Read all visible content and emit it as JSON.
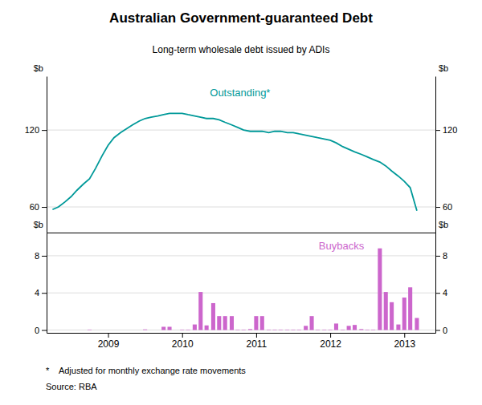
{
  "chart_data": [
    {
      "type": "line",
      "title": "Australian Government-guaranteed Debt",
      "subtitle": "Long-term wholesale debt issued by ADIs",
      "x": [
        2008.25,
        2008.33,
        2008.42,
        2008.5,
        2008.58,
        2008.67,
        2008.75,
        2008.83,
        2008.92,
        2009.0,
        2009.08,
        2009.17,
        2009.25,
        2009.33,
        2009.42,
        2009.5,
        2009.58,
        2009.67,
        2009.75,
        2009.83,
        2009.92,
        2010.0,
        2010.08,
        2010.17,
        2010.25,
        2010.33,
        2010.42,
        2010.5,
        2010.58,
        2010.67,
        2010.75,
        2010.83,
        2010.92,
        2011.0,
        2011.08,
        2011.17,
        2011.25,
        2011.33,
        2011.42,
        2011.5,
        2011.58,
        2011.67,
        2011.75,
        2011.83,
        2011.92,
        2012.0,
        2012.08,
        2012.17,
        2012.25,
        2012.33,
        2012.42,
        2012.5,
        2012.58,
        2012.67,
        2012.75,
        2012.83,
        2012.92,
        2013.0,
        2013.08,
        2013.17
      ],
      "series": [
        {
          "name": "Outstanding*",
          "color": "#009999",
          "values": [
            58,
            60,
            64,
            68,
            73,
            78,
            82,
            90,
            100,
            108,
            114,
            118,
            121,
            124,
            127,
            129,
            130,
            131,
            132,
            133,
            133,
            133,
            132,
            131,
            130,
            129,
            129,
            128,
            126,
            124,
            122,
            120,
            119,
            119,
            119,
            118,
            119,
            119,
            118,
            118,
            117,
            116,
            115,
            114,
            113,
            112,
            110,
            107,
            105,
            103,
            101,
            99,
            97,
            95,
            92,
            88,
            84,
            80,
            75,
            57
          ]
        }
      ],
      "xlim": [
        2008.17,
        2013.42
      ],
      "ylim": [
        40,
        162
      ],
      "yticks": [
        60,
        120
      ],
      "y2lim": [
        40,
        162
      ],
      "y2ticks": [
        60,
        120
      ],
      "ylabel": "$b",
      "y2label": "$b",
      "grid": true,
      "tick_labels": "y"
    },
    {
      "type": "bar",
      "x": [
        2008.75,
        2009.5,
        2009.75,
        2009.83,
        2010.0,
        2010.08,
        2010.17,
        2010.25,
        2010.33,
        2010.42,
        2010.5,
        2010.58,
        2010.67,
        2010.75,
        2010.83,
        2010.92,
        2011.0,
        2011.08,
        2011.17,
        2011.25,
        2011.33,
        2011.42,
        2011.5,
        2011.58,
        2011.67,
        2011.75,
        2011.83,
        2011.92,
        2012.0,
        2012.08,
        2012.17,
        2012.25,
        2012.33,
        2012.42,
        2012.5,
        2012.58,
        2012.67,
        2012.75,
        2012.83,
        2012.92,
        2013.0,
        2013.08,
        2013.17
      ],
      "series": [
        {
          "name": "Buybacks",
          "color": "#CC66CC",
          "values": [
            0.05,
            0.07,
            0.35,
            0.35,
            0.05,
            0.05,
            0.6,
            4.1,
            0.5,
            2.9,
            1.5,
            1.5,
            1.5,
            0.05,
            0.05,
            0.1,
            1.5,
            1.5,
            0.05,
            0.05,
            0.05,
            0.05,
            0.05,
            0.05,
            0.45,
            1.5,
            0.05,
            0.05,
            0.05,
            0.7,
            0.05,
            0.45,
            0.55,
            0.1,
            0.05,
            0.05,
            8.8,
            4.1,
            3.0,
            0.6,
            3.5,
            4.6,
            1.3
          ]
        }
      ],
      "xlim": [
        2008.17,
        2013.42
      ],
      "xticks": [
        2009,
        2010,
        2011,
        2012,
        2013
      ],
      "ylim": [
        -0.3,
        10.5
      ],
      "yticks": [
        0,
        4,
        8
      ],
      "y2lim": [
        -0.3,
        10.5
      ],
      "y2ticks": [
        0,
        4,
        8
      ],
      "ylabel": "$b",
      "y2label": "$b",
      "grid": true,
      "annotations": [
        "*    Adjusted for monthly exchange rate movements",
        "Source: RBA"
      ]
    }
  ]
}
